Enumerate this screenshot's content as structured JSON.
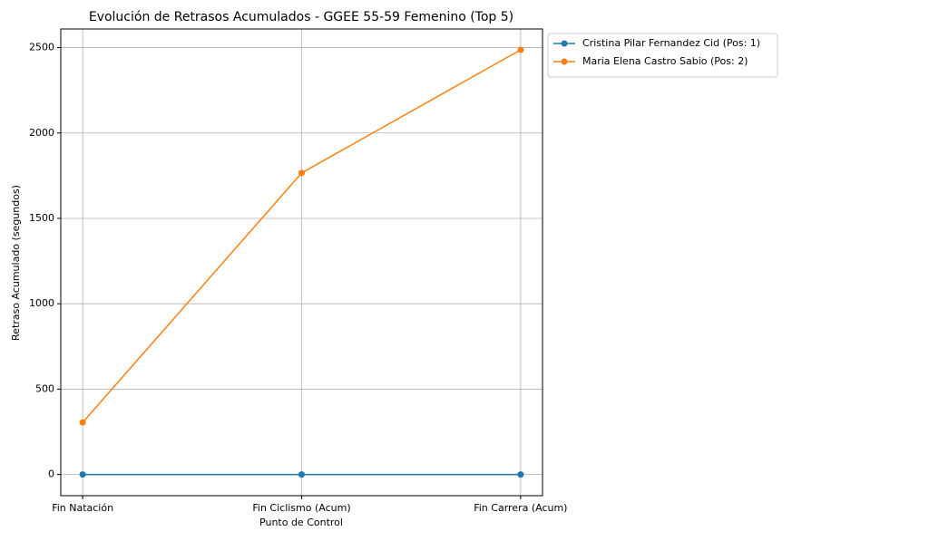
{
  "chart_data": {
    "type": "line",
    "title": "Evolución de Retrasos Acumulados - GGEE 55-59 Femenino (Top 5)",
    "x_label": "Punto de Control",
    "y_label": "Retraso Acumulado (segundos)",
    "categories": [
      "Fin Natación",
      "Fin Ciclismo (Acum)",
      "Fin Carrera (Acum)"
    ],
    "series": [
      {
        "name": "Cristina Pilar Fernandez Cid (Pos: 1)",
        "color": "#1f77b4",
        "values": [
          0,
          0,
          0
        ]
      },
      {
        "name": "Maria Elena Castro Sabio (Pos: 2)",
        "color": "#ff7f0e",
        "values": [
          305,
          1766,
          2487
        ]
      }
    ],
    "ylim": [
      -124,
      2609
    ],
    "yticks": [
      0,
      500,
      1000,
      1500,
      2000,
      2500
    ],
    "grid": true,
    "legend": "outside-upper-right"
  }
}
